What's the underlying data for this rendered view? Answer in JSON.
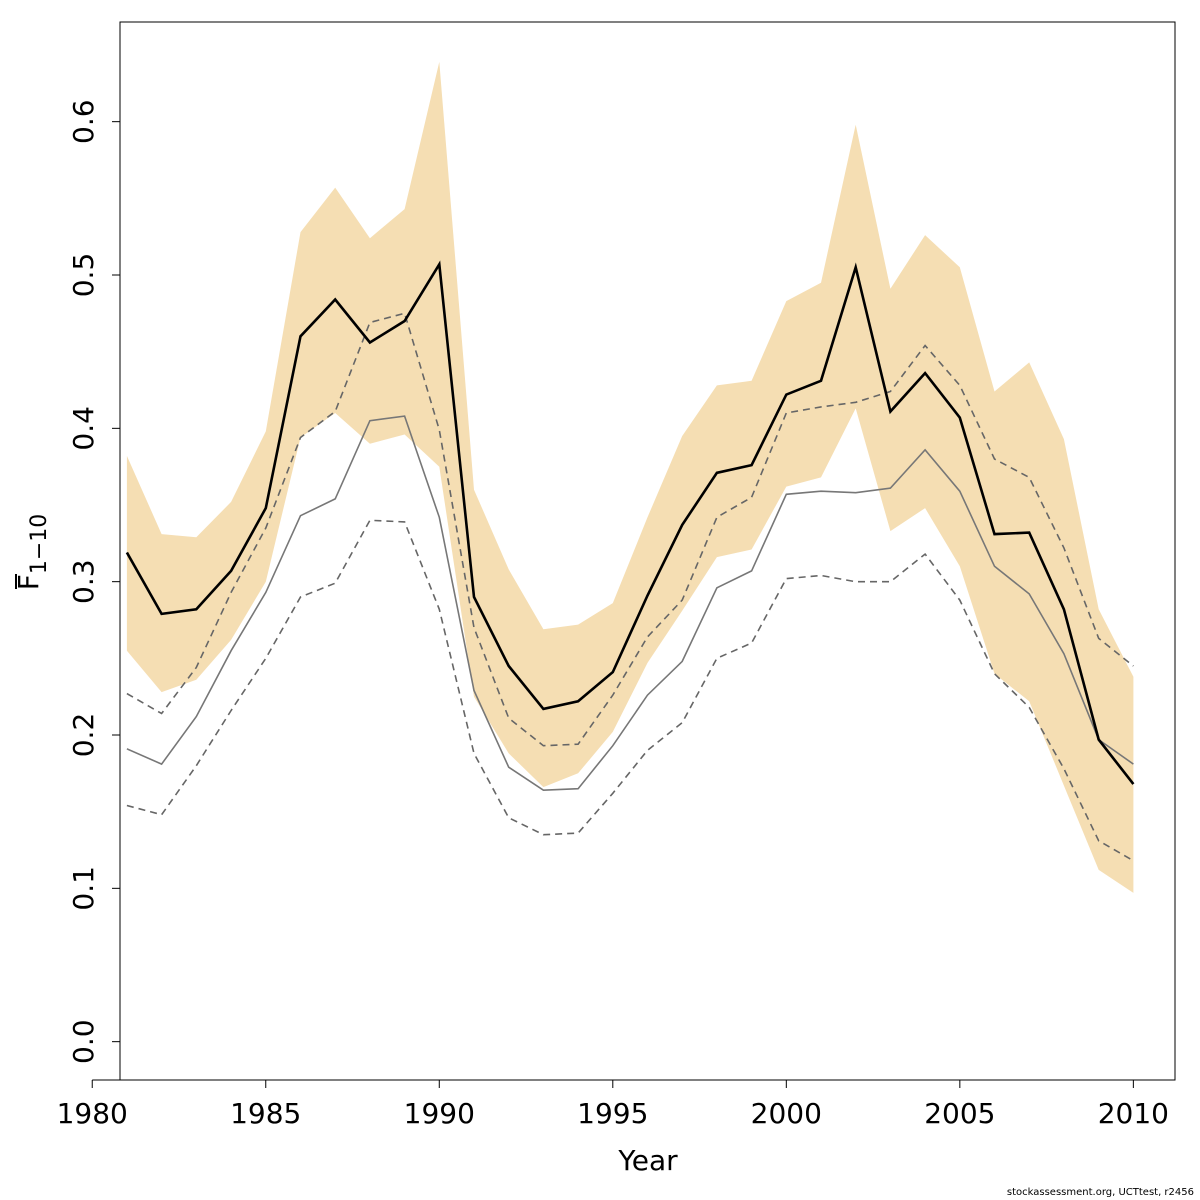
{
  "chart_data": {
    "type": "line",
    "xlabel": "Year",
    "ylabel": "F",
    "ylabel_subscript": "1−10",
    "xlim": [
      1980.8,
      2011.2
    ],
    "ylim": [
      -0.025,
      0.665
    ],
    "x_ticks": [
      "1980",
      "1985",
      "1990",
      "1995",
      "2000",
      "2005",
      "2010"
    ],
    "y_ticks": [
      "0.0",
      "0.1",
      "0.2",
      "0.3",
      "0.4",
      "0.5",
      "0.6"
    ],
    "x": [
      1981,
      1982,
      1983,
      1984,
      1985,
      1986,
      1987,
      1988,
      1989,
      1990,
      1991,
      1992,
      1993,
      1994,
      1995,
      1996,
      1997,
      1998,
      1999,
      2000,
      2001,
      2002,
      2003,
      2004,
      2005,
      2006,
      2007,
      2008,
      2009,
      2010
    ],
    "confidence_band": {
      "color": "#f5deb3",
      "lower": [
        0.255,
        0.228,
        0.236,
        0.262,
        0.3,
        0.394,
        0.41,
        0.39,
        0.396,
        0.375,
        0.225,
        0.188,
        0.166,
        0.175,
        0.202,
        0.247,
        0.281,
        0.316,
        0.321,
        0.362,
        0.368,
        0.413,
        0.333,
        0.348,
        0.31,
        0.24,
        0.222,
        0.167,
        0.112,
        0.097
      ],
      "upper": [
        0.382,
        0.331,
        0.329,
        0.352,
        0.398,
        0.528,
        0.557,
        0.524,
        0.543,
        0.639,
        0.36,
        0.308,
        0.269,
        0.272,
        0.286,
        0.342,
        0.395,
        0.428,
        0.431,
        0.483,
        0.495,
        0.598,
        0.491,
        0.526,
        0.505,
        0.424,
        0.443,
        0.393,
        0.282,
        0.238
      ]
    },
    "series": [
      {
        "color": "#000000",
        "style": "solid",
        "values": [
          0.319,
          0.279,
          0.282,
          0.307,
          0.348,
          0.46,
          0.484,
          0.456,
          0.47,
          0.507,
          0.29,
          0.245,
          0.217,
          0.222,
          0.241,
          0.291,
          0.337,
          0.371,
          0.376,
          0.422,
          0.431,
          0.505,
          0.411,
          0.436,
          0.407,
          0.331,
          0.332,
          0.282,
          0.197,
          0.168
        ]
      },
      {
        "color": "#777777",
        "style": "solid",
        "values": [
          0.191,
          0.181,
          0.212,
          0.255,
          0.293,
          0.343,
          0.354,
          0.405,
          0.408,
          0.342,
          0.229,
          0.179,
          0.164,
          0.165,
          0.193,
          0.226,
          0.248,
          0.296,
          0.307,
          0.357,
          0.359,
          0.358,
          0.361,
          0.386,
          0.359,
          0.31,
          0.292,
          0.253,
          0.197,
          0.181
        ]
      },
      {
        "color": "#666666",
        "style": "dashed",
        "values": [
          0.227,
          0.214,
          0.244,
          0.293,
          0.335,
          0.394,
          0.411,
          0.469,
          0.475,
          0.399,
          0.27,
          0.211,
          0.193,
          0.194,
          0.226,
          0.264,
          0.288,
          0.342,
          0.355,
          0.41,
          0.414,
          0.417,
          0.424,
          0.454,
          0.428,
          0.38,
          0.368,
          0.322,
          0.263,
          0.245
        ]
      },
      {
        "color": "#666666",
        "style": "dashed",
        "values": [
          0.154,
          0.148,
          0.18,
          0.216,
          0.25,
          0.29,
          0.299,
          0.34,
          0.339,
          0.282,
          0.188,
          0.146,
          0.135,
          0.136,
          0.162,
          0.19,
          0.208,
          0.25,
          0.26,
          0.302,
          0.304,
          0.3,
          0.3,
          0.318,
          0.288,
          0.24,
          0.218,
          0.178,
          0.131,
          0.118
        ]
      }
    ],
    "grid": false,
    "legend": "none"
  },
  "footer_text": "stockassessment.org, UCTtest, r2456"
}
